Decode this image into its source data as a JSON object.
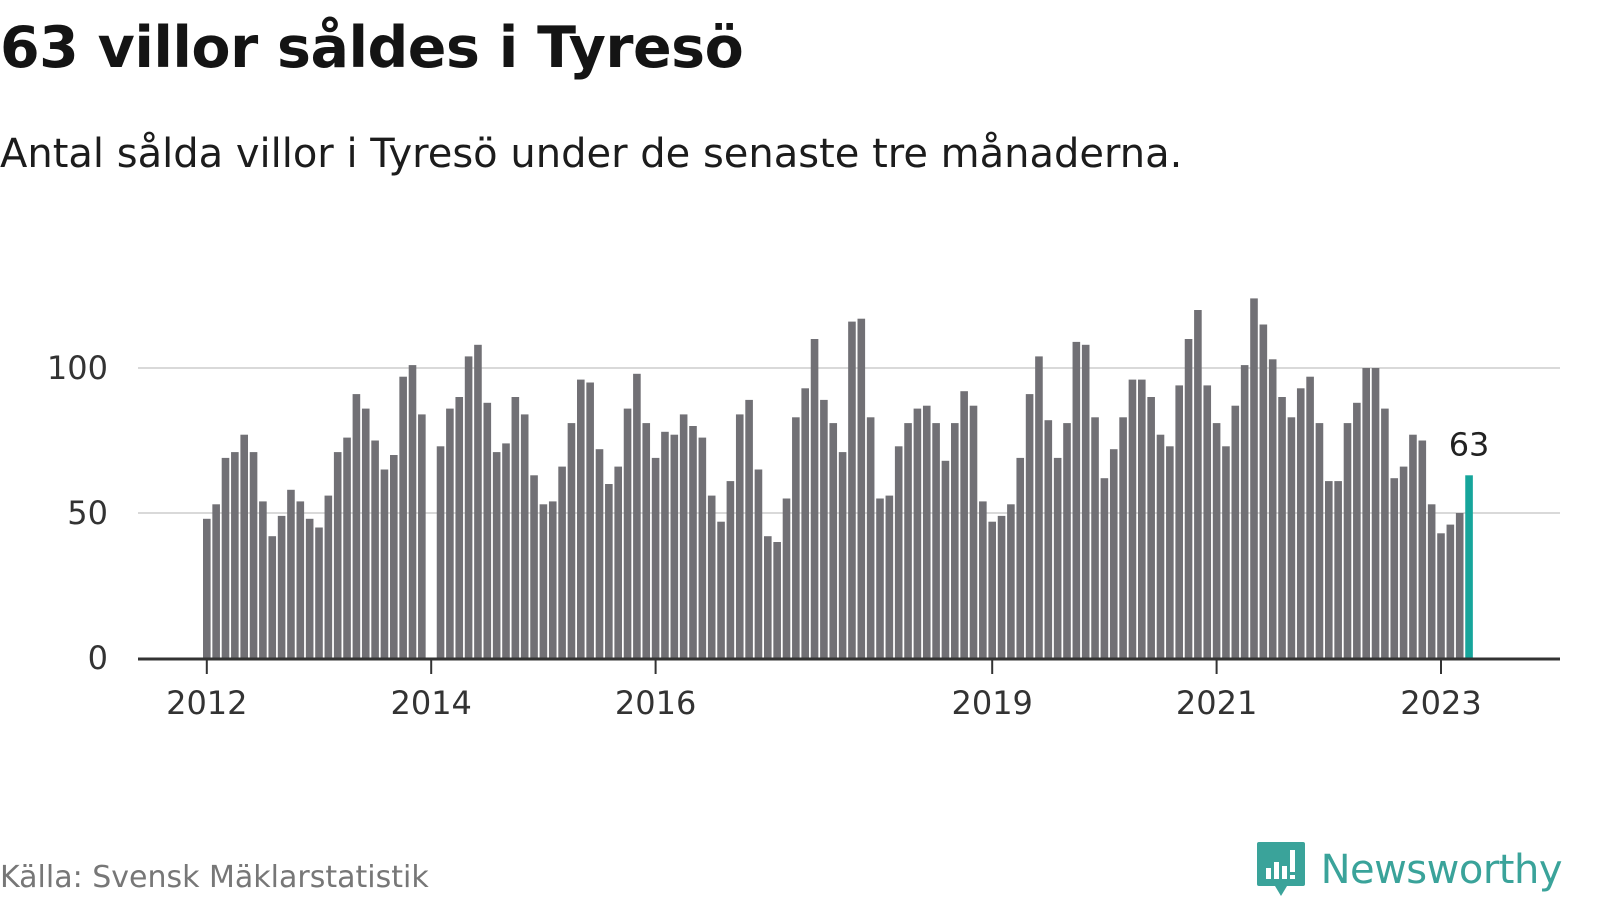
{
  "colors": {
    "bar": "#717075",
    "highlight": "#16a59b",
    "grid": "#d9d9d9",
    "axis": "#333333",
    "brand": "#3aa39a"
  },
  "logo": {
    "icon": "newsworthy-chart-icon",
    "text": "Newsworthy"
  },
  "source": "Källa: Svensk Mäklarstatistik",
  "chart_data": {
    "type": "bar",
    "title": "63 villor såldes i Tyresö",
    "subtitle": "Antal sålda villor i Tyresö under de senaste tre månaderna.",
    "xlabel": "",
    "ylabel": "",
    "ylim": [
      0,
      124
    ],
    "y_ticks": [
      0,
      50,
      100
    ],
    "grid": true,
    "first_period": "2012-01",
    "series": [
      {
        "name": "Antal sålda villor",
        "values": [
          48,
          53,
          69,
          71,
          77,
          71,
          54,
          42,
          49,
          58,
          54,
          48,
          45,
          56,
          71,
          76,
          91,
          86,
          75,
          65,
          70,
          97,
          101,
          84,
          0,
          73,
          86,
          90,
          104,
          108,
          88,
          71,
          74,
          90,
          84,
          63,
          53,
          54,
          66,
          81,
          96,
          95,
          72,
          60,
          66,
          86,
          98,
          81,
          69,
          78,
          77,
          84,
          80,
          76,
          56,
          47,
          61,
          84,
          89,
          65,
          42,
          40,
          55,
          83,
          93,
          110,
          89,
          81,
          71,
          116,
          117,
          83,
          55,
          56,
          73,
          81,
          86,
          87,
          81,
          68,
          81,
          92,
          87,
          54,
          47,
          49,
          53,
          69,
          91,
          104,
          82,
          69,
          81,
          109,
          108,
          83,
          62,
          72,
          83,
          96,
          96,
          90,
          77,
          73,
          94,
          110,
          120,
          94,
          81,
          73,
          87,
          101,
          124,
          115,
          103,
          90,
          83,
          93,
          97,
          81,
          61,
          61,
          81,
          88,
          100,
          100,
          86,
          62,
          66,
          77,
          75,
          53,
          43,
          46,
          50,
          63
        ]
      }
    ],
    "x_tick_labels": [
      {
        "label": "2012",
        "index": 0
      },
      {
        "label": "2014",
        "index": 24
      },
      {
        "label": "2016",
        "index": 48
      },
      {
        "label": "2019",
        "index": 84
      },
      {
        "label": "2021",
        "index": 108
      },
      {
        "label": "2023",
        "index": 132
      }
    ],
    "highlight": {
      "index": 135,
      "label": "63"
    }
  }
}
